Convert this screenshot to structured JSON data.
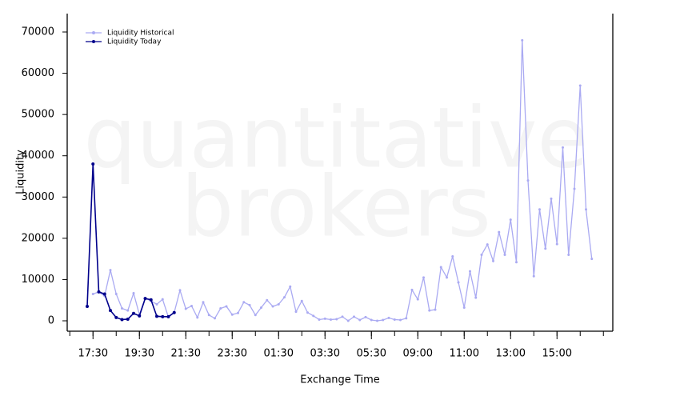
{
  "chart_data": {
    "type": "line",
    "xlabel": "Exchange Time",
    "ylabel": "Liquidity",
    "watermark": [
      "quantitative",
      "brokers"
    ],
    "categories": [
      null,
      "17:30",
      null,
      null,
      null,
      null,
      null,
      null,
      null,
      "19:30",
      null,
      null,
      null,
      null,
      null,
      null,
      null,
      "21:30",
      null,
      null,
      null,
      null,
      null,
      null,
      null,
      "23:30",
      null,
      null,
      null,
      null,
      null,
      null,
      null,
      "01:30",
      null,
      null,
      null,
      null,
      null,
      null,
      null,
      "03:30",
      null,
      null,
      null,
      null,
      null,
      null,
      null,
      "05:30",
      null,
      null,
      null,
      null,
      null,
      null,
      null,
      "09:00",
      null,
      null,
      null,
      null,
      null,
      null,
      null,
      "11:00",
      null,
      null,
      null,
      null,
      null,
      null,
      null,
      "13:00",
      null,
      null,
      null,
      null,
      null,
      null,
      null,
      "15:00",
      null,
      null,
      null,
      null,
      null,
      null
    ],
    "series": [
      {
        "name": "Liquidity Historical",
        "color": "#aaaaf2",
        "values": [
          null,
          6500,
          7000,
          6000,
          12300,
          6500,
          3000,
          2500,
          6700,
          1500,
          5500,
          4800,
          4000,
          5200,
          900,
          2000,
          7400,
          2900,
          3600,
          800,
          4500,
          1400,
          600,
          3000,
          3500,
          1500,
          1900,
          4500,
          3800,
          1400,
          3200,
          5000,
          3500,
          4000,
          5700,
          8300,
          2200,
          4800,
          2000,
          1200,
          300,
          500,
          300,
          400,
          1000,
          0,
          1000,
          200,
          900,
          200,
          0,
          200,
          700,
          300,
          200,
          600,
          7500,
          5200,
          10500,
          2500,
          2700,
          13000,
          10500,
          15600,
          9300,
          3200,
          12000,
          5600,
          16000,
          18500,
          14500,
          21500,
          16000,
          24500,
          14200,
          68000,
          34000,
          10800,
          27000,
          17500,
          29600,
          18600,
          42000,
          16000,
          32000,
          57000,
          27000,
          15000
        ]
      },
      {
        "name": "Liquidity Today",
        "color": "#00008b",
        "values": [
          3500,
          38000,
          7000,
          6500,
          2500,
          800,
          300,
          400,
          1800,
          1200,
          5400,
          5100,
          1100,
          1000,
          1000,
          2000,
          null,
          null,
          null,
          null,
          null,
          null,
          null,
          null,
          null,
          null,
          null,
          null,
          null,
          null,
          null,
          null,
          null,
          null,
          null,
          null,
          null,
          null,
          null,
          null,
          null,
          null,
          null,
          null,
          null,
          null,
          null,
          null,
          null,
          null,
          null,
          null,
          null,
          null,
          null,
          null,
          null,
          null,
          null,
          null,
          null,
          null,
          null,
          null,
          null,
          null,
          null,
          null,
          null,
          null,
          null,
          null,
          null,
          null,
          null,
          null,
          null,
          null,
          null,
          null,
          null,
          null,
          null,
          null,
          null,
          null,
          null,
          null
        ]
      }
    ],
    "ylim": [
      -2520,
      74460
    ],
    "yticks": [
      0,
      10000,
      20000,
      30000,
      40000,
      50000,
      60000,
      70000
    ],
    "legend": "upper left"
  }
}
